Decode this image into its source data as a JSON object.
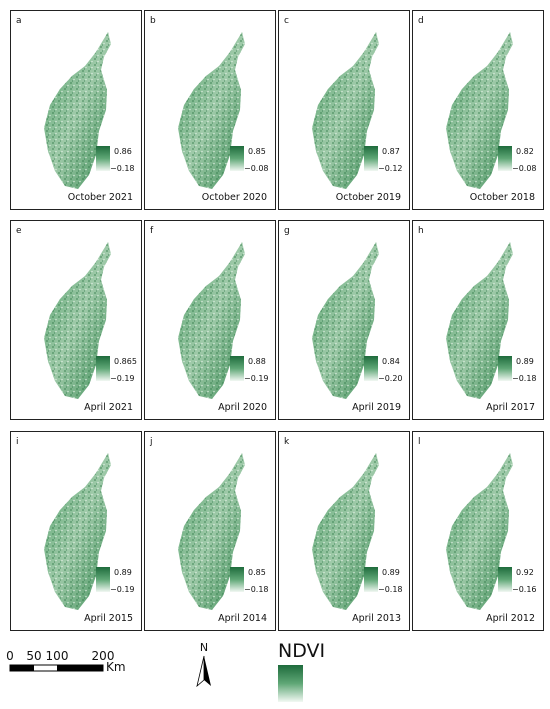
{
  "panels": [
    {
      "letter": "a",
      "date": "October 2021",
      "max": "0.86",
      "min": "−0.18"
    },
    {
      "letter": "b",
      "date": "October 2020",
      "max": "0.85",
      "min": "−0.08"
    },
    {
      "letter": "c",
      "date": "October 2019",
      "max": "0.87",
      "min": "−0.12"
    },
    {
      "letter": "d",
      "date": "October 2018",
      "max": "0.82",
      "min": "−0.08"
    },
    {
      "letter": "e",
      "date": "April 2021",
      "max": "0.865",
      "min": "−0.19"
    },
    {
      "letter": "f",
      "date": "April 2020",
      "max": "0.88",
      "min": "−0.19"
    },
    {
      "letter": "g",
      "date": "April 2019",
      "max": "0.84",
      "min": "−0.20"
    },
    {
      "letter": "h",
      "date": "April 2017",
      "max": "0.89",
      "min": "−0.18"
    },
    {
      "letter": "i",
      "date": "April 2015",
      "max": "0.89",
      "min": "−0.19"
    },
    {
      "letter": "j",
      "date": "April 2014",
      "max": "0.85",
      "min": "−0.18"
    },
    {
      "letter": "k",
      "date": "April 2013",
      "max": "0.89",
      "min": "−0.18"
    },
    {
      "letter": "l",
      "date": "April 2012",
      "max": "0.92",
      "min": "−0.16"
    }
  ],
  "scale_bar": {
    "ticks": [
      "0",
      "50",
      "100",
      "200"
    ],
    "unit": "Km"
  },
  "north_arrow": "N",
  "legend": {
    "title": "NDVI"
  }
}
